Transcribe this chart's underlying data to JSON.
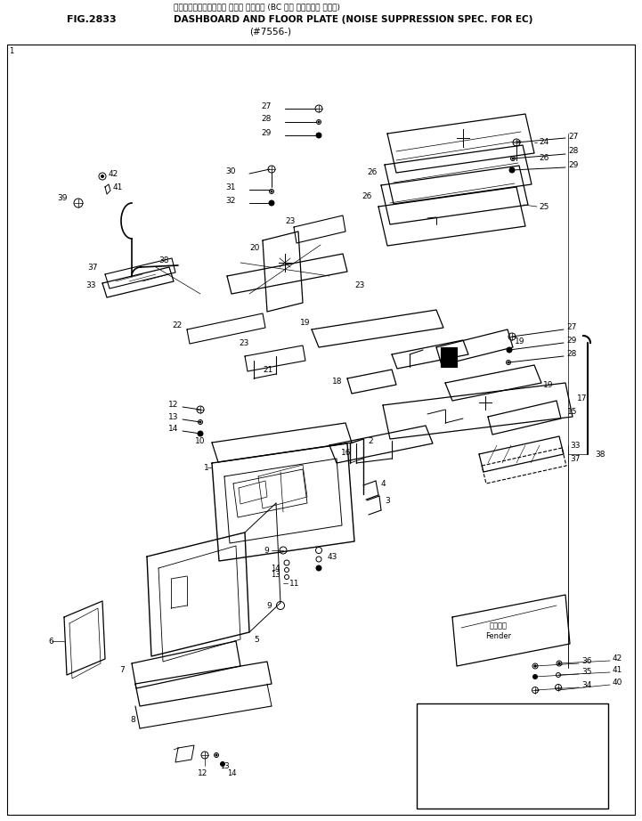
{
  "fig_number": "FIG.2833",
  "title_line1": "ダッシュボード・オヘ・ フロア プレート (BC 仕様 テイソヨン ショリ)",
  "title_line2": "DASHBOARD AND FLOOR PLATE (NOISE SUPPRESSION SPEC. FOR EC)",
  "subtitle": "(#7556-)",
  "bg_color": "#ffffff",
  "lc": "#000000",
  "fig_w": 7.21,
  "fig_h": 9.22,
  "dpi": 100
}
